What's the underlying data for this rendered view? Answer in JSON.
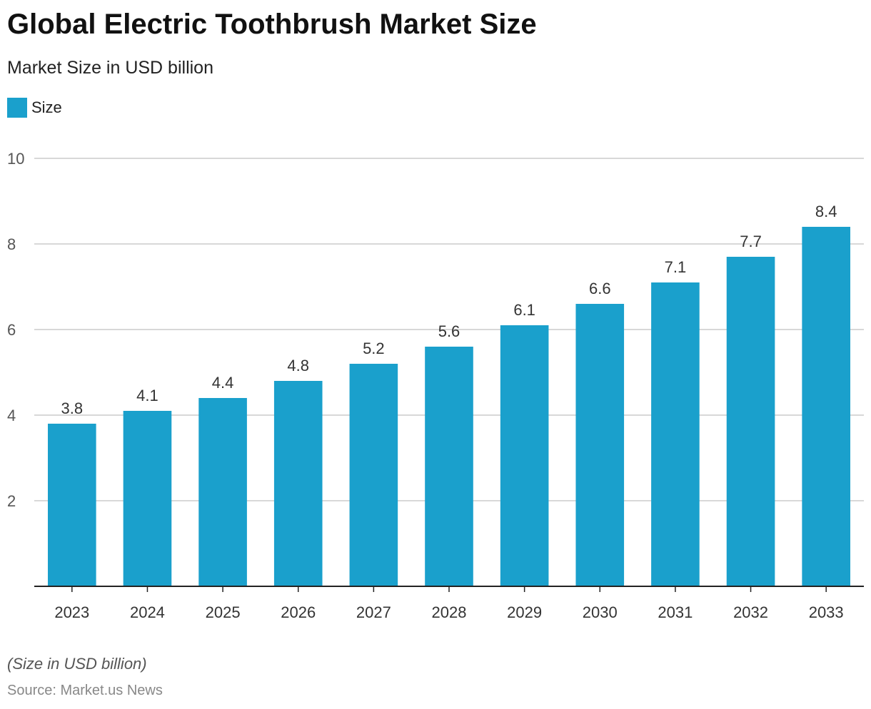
{
  "header": {
    "title": "Global Electric Toothbrush Market Size",
    "subtitle": "Market Size in USD billion"
  },
  "legend": {
    "label": "Size",
    "color": "#1aa0cc"
  },
  "footer": {
    "note": "(Size in USD billion)",
    "source": "Source: Market.us News"
  },
  "chart_data": {
    "type": "bar",
    "title": "Global Electric Toothbrush Market Size",
    "subtitle": "Market Size in USD billion",
    "xlabel": "",
    "ylabel": "",
    "categories": [
      "2023",
      "2024",
      "2025",
      "2026",
      "2027",
      "2028",
      "2029",
      "2030",
      "2031",
      "2032",
      "2033"
    ],
    "series": [
      {
        "name": "Size",
        "color": "#1aa0cc",
        "values": [
          3.8,
          4.1,
          4.4,
          4.8,
          5.2,
          5.6,
          6.1,
          6.6,
          7.1,
          7.7,
          8.4
        ]
      }
    ],
    "ylim": [
      0,
      10
    ],
    "yticks": [
      2,
      4,
      6,
      8,
      10
    ],
    "grid": true,
    "legend_position": "top-left",
    "data_labels": true
  }
}
